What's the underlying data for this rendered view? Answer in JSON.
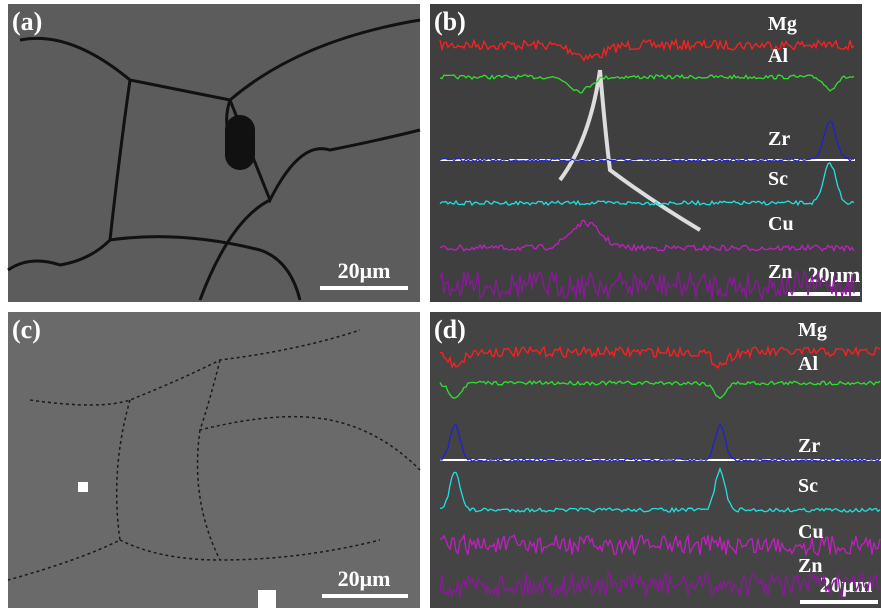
{
  "panels": [
    {
      "label": "(a)",
      "scale_bar": "20μm"
    },
    {
      "label": "(b)",
      "scale_bar": "20μm",
      "elements": [
        "Mg",
        "Al",
        "Zr",
        "Sc",
        "Cu",
        "Zn"
      ]
    },
    {
      "label": "(c)",
      "scale_bar": "20μm"
    },
    {
      "label": "(d)",
      "scale_bar": "20μm",
      "elements": [
        "Mg",
        "Al",
        "Zr",
        "Sc",
        "Cu",
        "Zn"
      ]
    }
  ]
}
